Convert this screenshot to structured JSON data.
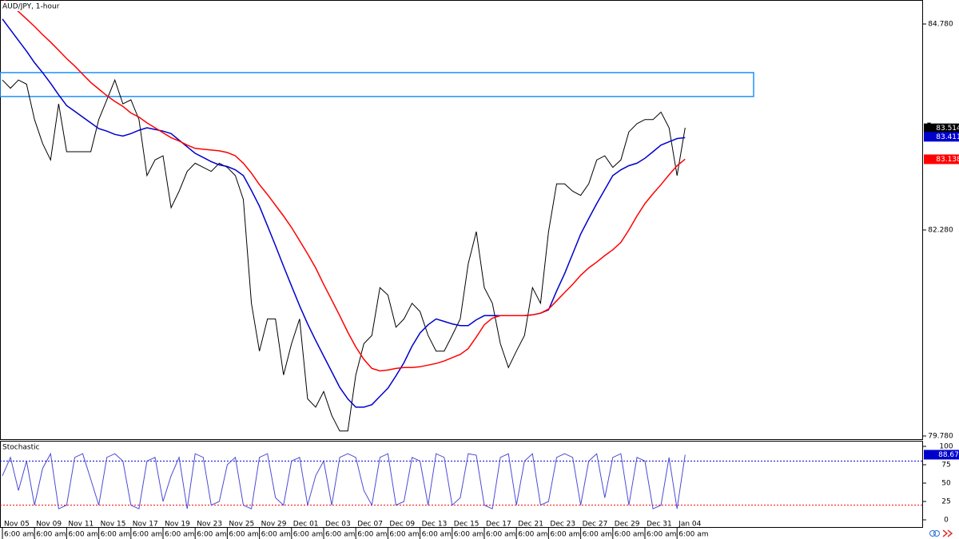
{
  "chart_data": {
    "type": "line",
    "title": "AUD/JPY, 1-hour",
    "indicator_title": "Stochastic",
    "categories": [
      "Nov 05",
      null,
      null,
      null,
      "Nov 09",
      null,
      null,
      null,
      "Nov 11",
      null,
      null,
      null,
      "Nov 15",
      null,
      null,
      null,
      "Nov 17",
      null,
      null,
      null,
      "Nov 19",
      null,
      null,
      null,
      "Nov 23",
      null,
      null,
      null,
      "Nov 25",
      null,
      null,
      null,
      "Nov 29",
      null,
      null,
      null,
      "Dec 01",
      null,
      null,
      null,
      "Dec 03",
      null,
      null,
      null,
      "Dec 07",
      null,
      null,
      null,
      "Dec 09",
      null,
      null,
      null,
      "Dec 13",
      null,
      null,
      null,
      "Dec 15",
      null,
      null,
      null,
      "Dec 17",
      null,
      null,
      null,
      "Dec 21",
      null,
      null,
      null,
      "Dec 23",
      null,
      null,
      null,
      "Dec 27",
      null,
      null,
      null,
      "Dec 29",
      null,
      null,
      null,
      "Dec 31",
      null,
      null,
      null,
      "Jan 04",
      null
    ],
    "x_sublabels": [
      "6:00 am",
      null,
      null,
      null,
      "6:00 am",
      null,
      null,
      null,
      "6:00 am",
      null,
      null,
      null,
      "6:00 am",
      null,
      null,
      null,
      "6:00 am",
      null,
      null,
      null,
      "6:00 am",
      null,
      null,
      null,
      "6:00 am",
      null,
      null,
      null,
      "6:00 am",
      null,
      null,
      null,
      "6:00 am",
      null,
      null,
      null,
      "6:00 am",
      null,
      null,
      null,
      "6:00 am",
      null,
      null,
      null,
      "6:00 am",
      null,
      null,
      null,
      "6:00 am",
      null,
      null,
      null,
      "6:00 am",
      null,
      null,
      null,
      "6:00 am",
      null,
      null,
      null,
      "6:00 am",
      null,
      null,
      null,
      "6:00 am",
      null,
      null,
      null,
      "6:00 am",
      null,
      null,
      null,
      "6:00 am",
      null,
      null,
      null,
      "6:00 am",
      null,
      null,
      null,
      "6:00 am",
      null,
      null,
      null,
      "6:00 am",
      null
    ],
    "series": [
      {
        "color": "#000000",
        "values": [
          84.1,
          84.0,
          84.1,
          84.05,
          83.62,
          83.33,
          83.13,
          83.81,
          83.23,
          83.23,
          83.23,
          83.23,
          83.62,
          83.86,
          84.1,
          83.81,
          83.86,
          83.62,
          82.94,
          83.13,
          83.18,
          82.55,
          82.75,
          82.99,
          83.09,
          83.04,
          82.99,
          83.09,
          83.04,
          82.94,
          82.65,
          81.39,
          80.81,
          81.2,
          81.2,
          80.52,
          80.9,
          81.2,
          80.23,
          80.13,
          80.32,
          80.03,
          79.84,
          79.84,
          80.52,
          80.9,
          81.0,
          81.58,
          81.49,
          81.1,
          81.2,
          81.39,
          81.29,
          81.0,
          80.81,
          80.81,
          81.0,
          81.2,
          81.87,
          82.26,
          81.58,
          81.39,
          80.9,
          80.61,
          80.81,
          81.0,
          81.58,
          81.39,
          82.26,
          82.84,
          82.84,
          82.75,
          82.7,
          82.84,
          83.13,
          83.18,
          83.04,
          83.13,
          83.47,
          83.57,
          83.62,
          83.62,
          83.71,
          83.52,
          82.94,
          83.52
        ]
      },
      {
        "color": "#0000cc",
        "values": [
          84.84,
          84.71,
          84.58,
          84.45,
          84.31,
          84.19,
          84.06,
          83.92,
          83.79,
          83.72,
          83.65,
          83.58,
          83.51,
          83.48,
          83.44,
          83.42,
          83.45,
          83.49,
          83.52,
          83.5,
          83.48,
          83.45,
          83.37,
          83.29,
          83.21,
          83.16,
          83.11,
          83.07,
          83.05,
          83.01,
          82.94,
          82.76,
          82.57,
          82.33,
          82.09,
          81.84,
          81.6,
          81.36,
          81.14,
          80.94,
          80.75,
          80.56,
          80.37,
          80.23,
          80.13,
          80.13,
          80.16,
          80.26,
          80.36,
          80.51,
          80.67,
          80.87,
          81.03,
          81.13,
          81.2,
          81.17,
          81.14,
          81.12,
          81.12,
          81.19,
          81.24,
          81.24,
          81.24,
          81.24,
          81.24,
          81.24,
          81.25,
          81.27,
          81.31,
          81.54,
          81.75,
          81.99,
          82.23,
          82.42,
          82.6,
          82.77,
          82.94,
          83.01,
          83.06,
          83.09,
          83.15,
          83.23,
          83.31,
          83.35,
          83.39,
          83.4
        ]
      },
      {
        "color": "#ff0000",
        "values": [
          85.09,
          85.01,
          84.93,
          84.84,
          84.75,
          84.65,
          84.56,
          84.46,
          84.36,
          84.27,
          84.17,
          84.07,
          83.99,
          83.91,
          83.84,
          83.78,
          83.7,
          83.65,
          83.58,
          83.52,
          83.46,
          83.4,
          83.36,
          83.31,
          83.27,
          83.26,
          83.25,
          83.24,
          83.22,
          83.18,
          83.09,
          82.97,
          82.83,
          82.71,
          82.58,
          82.45,
          82.31,
          82.15,
          81.99,
          81.82,
          81.62,
          81.43,
          81.24,
          81.04,
          80.86,
          80.71,
          80.6,
          80.57,
          80.58,
          80.6,
          80.61,
          80.61,
          80.62,
          80.64,
          80.66,
          80.69,
          80.73,
          80.77,
          80.84,
          80.98,
          81.13,
          81.21,
          81.24,
          81.24,
          81.24,
          81.24,
          81.25,
          81.27,
          81.32,
          81.42,
          81.52,
          81.62,
          81.73,
          81.82,
          81.89,
          81.97,
          82.04,
          82.13,
          82.28,
          82.45,
          82.6,
          82.72,
          82.83,
          82.95,
          83.06,
          83.14
        ]
      }
    ],
    "last_values": [
      83.514,
      83.411,
      83.138
    ],
    "last_colors": [
      "#000000",
      "#0000cc",
      "#ff0000"
    ],
    "zone": [
      83.9,
      84.19
    ],
    "zone_color": "#1e90ff",
    "ylim": [
      79.741,
      85.071
    ],
    "yticks": [
      {
        "value": 84.78,
        "label": "84.780"
      },
      {
        "value": 82.28,
        "label": "82.280"
      },
      {
        "value": 79.78,
        "label": "79.780"
      }
    ],
    "stochastic": {
      "color": "#4b4bd6",
      "values": [
        60,
        85,
        40,
        80,
        20,
        70,
        90,
        15,
        20,
        85,
        90,
        55,
        20,
        85,
        90,
        80,
        20,
        15,
        80,
        85,
        25,
        60,
        85,
        15,
        90,
        85,
        20,
        25,
        75,
        85,
        20,
        15,
        85,
        90,
        30,
        20,
        80,
        85,
        20,
        60,
        80,
        20,
        85,
        90,
        85,
        40,
        20,
        85,
        90,
        20,
        25,
        85,
        80,
        20,
        90,
        85,
        20,
        30,
        90,
        88,
        20,
        15,
        85,
        90,
        20,
        80,
        90,
        20,
        25,
        85,
        90,
        85,
        20,
        80,
        90,
        30,
        85,
        90,
        20,
        85,
        80,
        15,
        20,
        85,
        15,
        88.67
      ],
      "last_value": 88.67,
      "levels": [
        80,
        20
      ],
      "level_colors": [
        "#0000cc",
        "#ff0000"
      ],
      "ylim": [
        -9.8,
        107.6
      ],
      "yticks": [
        0,
        25,
        50,
        75,
        100
      ]
    }
  }
}
